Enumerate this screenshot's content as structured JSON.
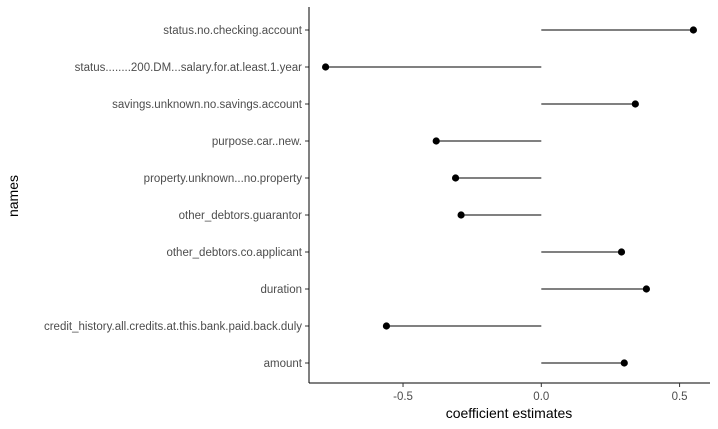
{
  "chart_data": {
    "type": "lollipop",
    "xlabel": "coefficient estimates",
    "ylabel": "names",
    "xlim": [
      -0.84,
      0.61
    ],
    "xticks": [
      -0.5,
      0.0,
      0.5
    ],
    "xtick_labels": [
      "-0.5",
      "0.0",
      "0.5"
    ],
    "baseline": 0,
    "grid": false,
    "categories": [
      "status.no.checking.account",
      "status........200.DM...salary.for.at.least.1.year",
      "savings.unknown.no.savings.account",
      "purpose.car..new.",
      "property.unknown...no.property",
      "other_debtors.guarantor",
      "other_debtors.co.applicant",
      "duration",
      "credit_history.all.credits.at.this.bank.paid.back.duly",
      "amount"
    ],
    "values": [
      0.55,
      -0.78,
      0.34,
      -0.38,
      -0.31,
      -0.29,
      0.29,
      0.38,
      -0.56,
      0.3
    ]
  }
}
